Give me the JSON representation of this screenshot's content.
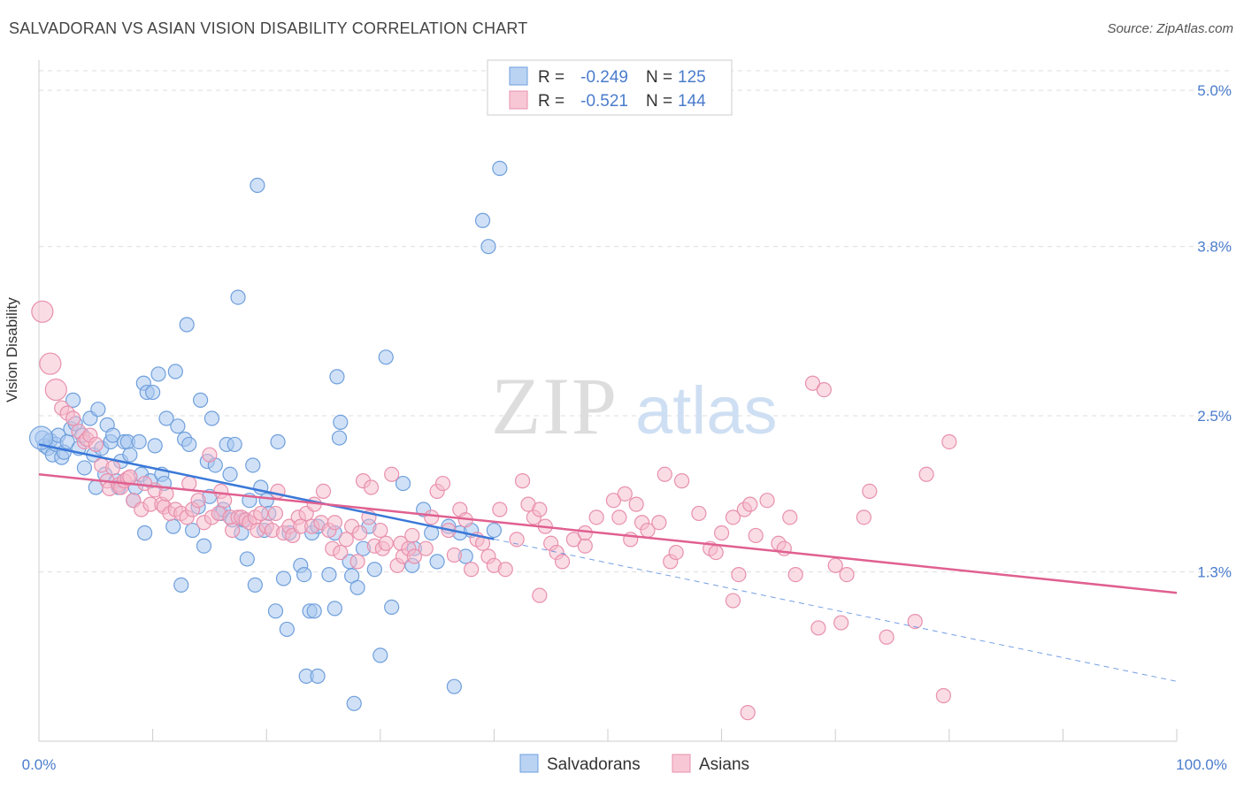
{
  "header": {
    "title": "SALVADORAN VS ASIAN VISION DISABILITY CORRELATION CHART",
    "source": "Source: ZipAtlas.com"
  },
  "watermark": {
    "zip": "ZIP",
    "atlas": "atlas"
  },
  "legend_top": {
    "rows": [
      {
        "r_label": "R =",
        "r_value": "-0.249",
        "n_label": "N =",
        "n_value": "125"
      },
      {
        "r_label": "R =",
        "r_value": "-0.521",
        "n_label": "N =",
        "n_value": "144"
      }
    ]
  },
  "legend_bottom": {
    "items": [
      "Salvadorans",
      "Asians"
    ]
  },
  "colors": {
    "salvadorans_fill": "#a9c8f0",
    "salvadorans_stroke": "#6f9fdc",
    "salvadorans_line": "#3a78d8",
    "asians_fill": "#f6b9cb",
    "asians_stroke": "#e890ad",
    "asians_line": "#e06090",
    "axis_label": "#4a7ccc",
    "grid": "#dddddd"
  },
  "chart_data": {
    "type": "scatter",
    "title": "SALVADORAN VS ASIAN VISION DISABILITY CORRELATION CHART",
    "xlabel": "",
    "ylabel": "Vision Disability",
    "xlim": [
      0,
      100
    ],
    "ylim": [
      0,
      5.15
    ],
    "x_tick_labels": [
      "0.0%",
      "100.0%"
    ],
    "y_ticks": [
      1.3,
      2.5,
      3.8,
      5.0
    ],
    "y_tick_labels": [
      "1.3%",
      "2.5%",
      "3.8%",
      "5.0%"
    ],
    "grid": "horizontal dashed",
    "legend": "top-center and bottom-center",
    "series": [
      {
        "name": "Salvadorans",
        "r": -0.249,
        "n": 125,
        "trend": {
          "x": [
            0,
            100
          ],
          "y": [
            2.28,
            0.46
          ],
          "solid_until": 40
        },
        "points": [
          [
            0.3,
            2.33
          ],
          [
            0.5,
            2.27
          ],
          [
            0.8,
            2.25
          ],
          [
            1.0,
            2.31
          ],
          [
            1.2,
            2.2
          ],
          [
            1.5,
            2.28
          ],
          [
            1.7,
            2.35
          ],
          [
            2.0,
            2.18
          ],
          [
            2.2,
            2.22
          ],
          [
            2.5,
            2.3
          ],
          [
            2.8,
            2.4
          ],
          [
            3.0,
            2.62
          ],
          [
            3.2,
            2.44
          ],
          [
            3.5,
            2.25
          ],
          [
            3.8,
            2.35
          ],
          [
            4.0,
            2.1
          ],
          [
            4.5,
            2.48
          ],
          [
            4.8,
            2.2
          ],
          [
            5.0,
            1.95
          ],
          [
            5.2,
            2.55
          ],
          [
            5.5,
            2.25
          ],
          [
            5.8,
            2.05
          ],
          [
            6.0,
            2.43
          ],
          [
            6.3,
            2.3
          ],
          [
            6.5,
            2.35
          ],
          [
            6.8,
            2.0
          ],
          [
            7.0,
            1.95
          ],
          [
            7.2,
            2.15
          ],
          [
            7.5,
            2.3
          ],
          [
            7.8,
            2.3
          ],
          [
            8.0,
            2.2
          ],
          [
            8.3,
            1.85
          ],
          [
            8.5,
            1.95
          ],
          [
            8.8,
            2.3
          ],
          [
            9.0,
            2.05
          ],
          [
            9.2,
            2.75
          ],
          [
            9.3,
            1.6
          ],
          [
            9.5,
            2.68
          ],
          [
            9.8,
            2.0
          ],
          [
            10.0,
            2.68
          ],
          [
            10.2,
            2.27
          ],
          [
            10.5,
            2.82
          ],
          [
            10.8,
            2.05
          ],
          [
            11.0,
            1.98
          ],
          [
            11.2,
            2.48
          ],
          [
            11.8,
            1.65
          ],
          [
            12.0,
            2.84
          ],
          [
            12.2,
            2.42
          ],
          [
            12.5,
            1.2
          ],
          [
            12.8,
            2.32
          ],
          [
            13.0,
            3.2
          ],
          [
            13.2,
            2.28
          ],
          [
            13.5,
            1.62
          ],
          [
            14.0,
            1.8
          ],
          [
            14.2,
            2.62
          ],
          [
            14.5,
            1.5
          ],
          [
            14.8,
            2.15
          ],
          [
            15.0,
            1.88
          ],
          [
            15.2,
            2.48
          ],
          [
            15.5,
            2.12
          ],
          [
            16.0,
            1.75
          ],
          [
            16.2,
            1.78
          ],
          [
            16.5,
            2.28
          ],
          [
            16.8,
            2.05
          ],
          [
            17.0,
            1.7
          ],
          [
            17.2,
            2.28
          ],
          [
            17.5,
            3.41
          ],
          [
            17.8,
            1.6
          ],
          [
            18.0,
            1.7
          ],
          [
            18.3,
            1.4
          ],
          [
            18.5,
            1.85
          ],
          [
            18.8,
            2.12
          ],
          [
            19.0,
            1.2
          ],
          [
            19.2,
            4.27
          ],
          [
            19.5,
            1.95
          ],
          [
            19.8,
            1.62
          ],
          [
            20.0,
            1.85
          ],
          [
            20.2,
            1.75
          ],
          [
            20.8,
            1.0
          ],
          [
            21.0,
            2.3
          ],
          [
            21.5,
            1.25
          ],
          [
            21.8,
            0.86
          ],
          [
            22.0,
            1.6
          ],
          [
            23.0,
            1.35
          ],
          [
            23.3,
            1.28
          ],
          [
            23.5,
            0.5
          ],
          [
            23.8,
            1.0
          ],
          [
            24.0,
            1.6
          ],
          [
            24.2,
            1.0
          ],
          [
            24.5,
            1.65
          ],
          [
            24.5,
            0.5
          ],
          [
            25.5,
            1.28
          ],
          [
            26.0,
            1.02
          ],
          [
            26.0,
            1.6
          ],
          [
            26.2,
            2.8
          ],
          [
            26.4,
            2.33
          ],
          [
            26.5,
            2.45
          ],
          [
            27.3,
            1.38
          ],
          [
            27.5,
            1.27
          ],
          [
            27.7,
            0.29
          ],
          [
            28.0,
            1.18
          ],
          [
            28.5,
            1.48
          ],
          [
            29.0,
            1.65
          ],
          [
            29.5,
            1.32
          ],
          [
            30.0,
            0.66
          ],
          [
            30.5,
            2.95
          ],
          [
            31.0,
            1.03
          ],
          [
            32.0,
            1.98
          ],
          [
            32.8,
            1.35
          ],
          [
            33.0,
            1.48
          ],
          [
            33.8,
            1.78
          ],
          [
            34.5,
            1.6
          ],
          [
            35.0,
            1.38
          ],
          [
            36.0,
            1.65
          ],
          [
            36.5,
            0.42
          ],
          [
            37.0,
            1.6
          ],
          [
            37.5,
            1.42
          ],
          [
            38.0,
            1.62
          ],
          [
            39.0,
            4.0
          ],
          [
            39.5,
            3.8
          ],
          [
            40.0,
            1.62
          ],
          [
            40.5,
            4.4
          ]
        ]
      },
      {
        "name": "Asians",
        "r": -0.521,
        "n": 144,
        "trend": {
          "x": [
            0,
            100
          ],
          "y": [
            2.05,
            1.14
          ]
        },
        "points": [
          [
            0.3,
            3.3
          ],
          [
            1.0,
            2.9
          ],
          [
            1.5,
            2.7
          ],
          [
            2.0,
            2.56
          ],
          [
            2.5,
            2.52
          ],
          [
            3.0,
            2.48
          ],
          [
            3.5,
            2.38
          ],
          [
            4.0,
            2.3
          ],
          [
            4.2,
            2.32
          ],
          [
            4.5,
            2.35
          ],
          [
            5.0,
            2.28
          ],
          [
            5.5,
            2.12
          ],
          [
            6.0,
            2.0
          ],
          [
            6.2,
            1.94
          ],
          [
            6.5,
            2.1
          ],
          [
            7.0,
            1.97
          ],
          [
            7.2,
            1.95
          ],
          [
            7.5,
            2.0
          ],
          [
            7.8,
            2.02
          ],
          [
            8.0,
            2.03
          ],
          [
            8.3,
            1.85
          ],
          [
            9.0,
            1.78
          ],
          [
            9.3,
            1.98
          ],
          [
            9.8,
            1.82
          ],
          [
            10.2,
            1.93
          ],
          [
            10.8,
            1.82
          ],
          [
            11.0,
            1.8
          ],
          [
            11.2,
            1.9
          ],
          [
            11.5,
            1.75
          ],
          [
            12.0,
            1.78
          ],
          [
            12.5,
            1.75
          ],
          [
            13.0,
            1.72
          ],
          [
            13.2,
            1.98
          ],
          [
            13.5,
            1.78
          ],
          [
            14.0,
            1.85
          ],
          [
            14.5,
            1.68
          ],
          [
            15.0,
            2.2
          ],
          [
            15.2,
            1.72
          ],
          [
            15.8,
            1.75
          ],
          [
            16.0,
            1.92
          ],
          [
            16.3,
            1.85
          ],
          [
            16.8,
            1.72
          ],
          [
            17.0,
            1.62
          ],
          [
            17.5,
            1.72
          ],
          [
            17.8,
            1.72
          ],
          [
            18.2,
            1.7
          ],
          [
            18.5,
            1.68
          ],
          [
            19.0,
            1.72
          ],
          [
            19.2,
            1.62
          ],
          [
            19.5,
            1.75
          ],
          [
            20.0,
            1.65
          ],
          [
            20.5,
            1.62
          ],
          [
            20.8,
            1.75
          ],
          [
            21.0,
            1.92
          ],
          [
            21.5,
            1.6
          ],
          [
            22.0,
            1.65
          ],
          [
            22.3,
            1.58
          ],
          [
            22.8,
            1.72
          ],
          [
            23.0,
            1.65
          ],
          [
            23.5,
            1.75
          ],
          [
            24.0,
            1.65
          ],
          [
            24.2,
            1.82
          ],
          [
            24.8,
            1.68
          ],
          [
            25.0,
            1.92
          ],
          [
            25.5,
            1.62
          ],
          [
            25.8,
            1.48
          ],
          [
            26.0,
            1.68
          ],
          [
            26.5,
            1.45
          ],
          [
            27.0,
            1.55
          ],
          [
            27.5,
            1.65
          ],
          [
            28.0,
            1.38
          ],
          [
            28.2,
            1.6
          ],
          [
            28.5,
            2.0
          ],
          [
            29.0,
            1.72
          ],
          [
            29.2,
            1.95
          ],
          [
            29.5,
            1.5
          ],
          [
            30.0,
            1.62
          ],
          [
            30.2,
            1.48
          ],
          [
            30.5,
            1.52
          ],
          [
            31.0,
            2.05
          ],
          [
            31.5,
            1.35
          ],
          [
            31.8,
            1.52
          ],
          [
            32.0,
            1.42
          ],
          [
            32.5,
            1.48
          ],
          [
            32.8,
            1.58
          ],
          [
            33.0,
            1.42
          ],
          [
            34.0,
            1.48
          ],
          [
            34.5,
            1.72
          ],
          [
            35.0,
            1.92
          ],
          [
            35.5,
            1.98
          ],
          [
            36.0,
            1.62
          ],
          [
            36.5,
            1.43
          ],
          [
            37.0,
            1.78
          ],
          [
            37.5,
            1.7
          ],
          [
            38.0,
            1.32
          ],
          [
            38.5,
            1.55
          ],
          [
            39.0,
            1.52
          ],
          [
            39.5,
            1.42
          ],
          [
            40.0,
            1.35
          ],
          [
            40.5,
            1.78
          ],
          [
            41.0,
            1.32
          ],
          [
            42.0,
            1.55
          ],
          [
            42.5,
            2.0
          ],
          [
            43.0,
            1.82
          ],
          [
            43.5,
            1.72
          ],
          [
            44.0,
            1.12
          ],
          [
            44.5,
            1.65
          ],
          [
            45.0,
            1.52
          ],
          [
            45.5,
            1.45
          ],
          [
            46.0,
            1.38
          ],
          [
            47.0,
            1.55
          ],
          [
            48.0,
            1.5
          ],
          [
            49.0,
            1.72
          ],
          [
            50.5,
            1.85
          ],
          [
            51.0,
            1.72
          ],
          [
            51.5,
            1.9
          ],
          [
            52.0,
            1.55
          ],
          [
            52.5,
            1.82
          ],
          [
            53.0,
            1.68
          ],
          [
            53.5,
            1.62
          ],
          [
            54.5,
            1.68
          ],
          [
            55.0,
            2.05
          ],
          [
            55.5,
            1.38
          ],
          [
            56.0,
            1.45
          ],
          [
            56.5,
            2.0
          ],
          [
            58.0,
            1.75
          ],
          [
            59.0,
            1.48
          ],
          [
            59.5,
            1.45
          ],
          [
            60.0,
            1.6
          ],
          [
            61.0,
            1.72
          ],
          [
            61.5,
            1.28
          ],
          [
            62.0,
            1.78
          ],
          [
            62.5,
            1.82
          ],
          [
            63.0,
            1.58
          ],
          [
            64.0,
            1.85
          ],
          [
            65.0,
            1.52
          ],
          [
            65.5,
            1.48
          ],
          [
            66.0,
            1.72
          ],
          [
            66.5,
            1.28
          ],
          [
            68.0,
            2.75
          ],
          [
            69.0,
            2.7
          ],
          [
            68.5,
            0.87
          ],
          [
            70.0,
            1.35
          ],
          [
            70.5,
            0.91
          ],
          [
            71.0,
            1.28
          ],
          [
            72.5,
            1.72
          ],
          [
            73.0,
            1.92
          ],
          [
            74.5,
            0.8
          ],
          [
            77.0,
            0.92
          ],
          [
            79.5,
            0.35
          ],
          [
            78.0,
            2.05
          ],
          [
            80.0,
            2.3
          ],
          [
            61.0,
            1.08
          ],
          [
            62.3,
            0.22
          ],
          [
            44.0,
            1.78
          ],
          [
            48.0,
            1.6
          ]
        ]
      }
    ]
  }
}
